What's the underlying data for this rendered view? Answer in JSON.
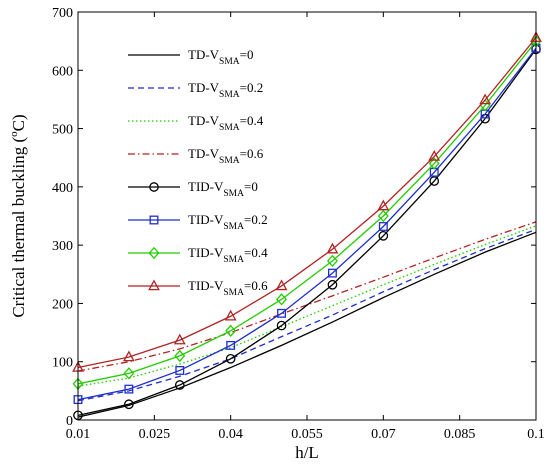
{
  "chart_data": {
    "type": "line",
    "xlabel": "h/L",
    "ylabel": "Critical thermal buckling (°C)",
    "ylabel_parts": {
      "before": "Critical thermal buckling (",
      "sup": "o",
      "after": "C)"
    },
    "xlim": [
      0.01,
      0.1
    ],
    "ylim": [
      0,
      700
    ],
    "x_ticks": [
      0.01,
      0.025,
      0.04,
      0.055,
      0.07,
      0.085,
      0.1
    ],
    "x_tick_labels": [
      "0.01",
      "0.025",
      "0.04",
      "0.055",
      "0.07",
      "0.085",
      "0.1"
    ],
    "y_ticks": [
      0,
      100,
      200,
      300,
      400,
      500,
      600,
      700
    ],
    "y_tick_labels": [
      "0",
      "100",
      "200",
      "300",
      "400",
      "500",
      "600",
      "700"
    ],
    "grid": false,
    "legend_position": "top-left",
    "x": [
      0.01,
      0.02,
      0.03,
      0.04,
      0.05,
      0.06,
      0.07,
      0.08,
      0.09,
      0.1
    ],
    "series": [
      {
        "name": "TD-VSMA=0",
        "legend": {
          "prefix": "TD-V",
          "sub": "SMA",
          "suffix": "=0"
        },
        "color": "#000000",
        "dash": "solid",
        "marker": "none",
        "values": [
          5,
          25,
          55,
          90,
          128,
          168,
          210,
          250,
          288,
          322
        ]
      },
      {
        "name": "TD-VSMA=0.2",
        "legend": {
          "prefix": "TD-V",
          "sub": "SMA",
          "suffix": "=0.2"
        },
        "color": "#1f2ecc",
        "dash": "dashed",
        "marker": "none",
        "values": [
          33,
          50,
          75,
          105,
          143,
          180,
          220,
          258,
          294,
          327
        ]
      },
      {
        "name": "TD-VSMA=0.4",
        "legend": {
          "prefix": "TD-V",
          "sub": "SMA",
          "suffix": "=0.4"
        },
        "color": "#22cc00",
        "dash": "dotted",
        "marker": "none",
        "values": [
          58,
          72,
          96,
          124,
          160,
          196,
          232,
          267,
          301,
          333
        ]
      },
      {
        "name": "TD-VSMA=0.6",
        "legend": {
          "prefix": "TD-V",
          "sub": "SMA",
          "suffix": "=0.6"
        },
        "color": "#b22222",
        "dash": "dashdot",
        "marker": "none",
        "values": [
          84,
          100,
          122,
          150,
          182,
          213,
          245,
          278,
          310,
          340
        ]
      },
      {
        "name": "TID-VSMA=0",
        "legend": {
          "prefix": "TID-V",
          "sub": "SMA",
          "suffix": "=0"
        },
        "color": "#000000",
        "dash": "solid",
        "marker": "circle",
        "values": [
          8,
          27,
          60,
          105,
          162,
          232,
          316,
          410,
          517,
          636
        ]
      },
      {
        "name": "TID-VSMA=0.2",
        "legend": {
          "prefix": "TID-V",
          "sub": "SMA",
          "suffix": "=0.2"
        },
        "color": "#1f2ecc",
        "dash": "solid",
        "marker": "square",
        "values": [
          35,
          53,
          85,
          128,
          183,
          252,
          332,
          425,
          525,
          638
        ]
      },
      {
        "name": "TID-VSMA=0.4",
        "legend": {
          "prefix": "TID-V",
          "sub": "SMA",
          "suffix": "=0.4"
        },
        "color": "#22cc00",
        "dash": "solid",
        "marker": "diamond",
        "values": [
          62,
          80,
          110,
          153,
          207,
          273,
          350,
          440,
          540,
          650
        ]
      },
      {
        "name": "TID-VSMA=0.6",
        "legend": {
          "prefix": "TID-V",
          "sub": "SMA",
          "suffix": "=0.6"
        },
        "color": "#b22222",
        "dash": "solid",
        "marker": "triangle",
        "values": [
          90,
          108,
          137,
          178,
          230,
          293,
          367,
          452,
          549,
          656
        ]
      }
    ]
  }
}
